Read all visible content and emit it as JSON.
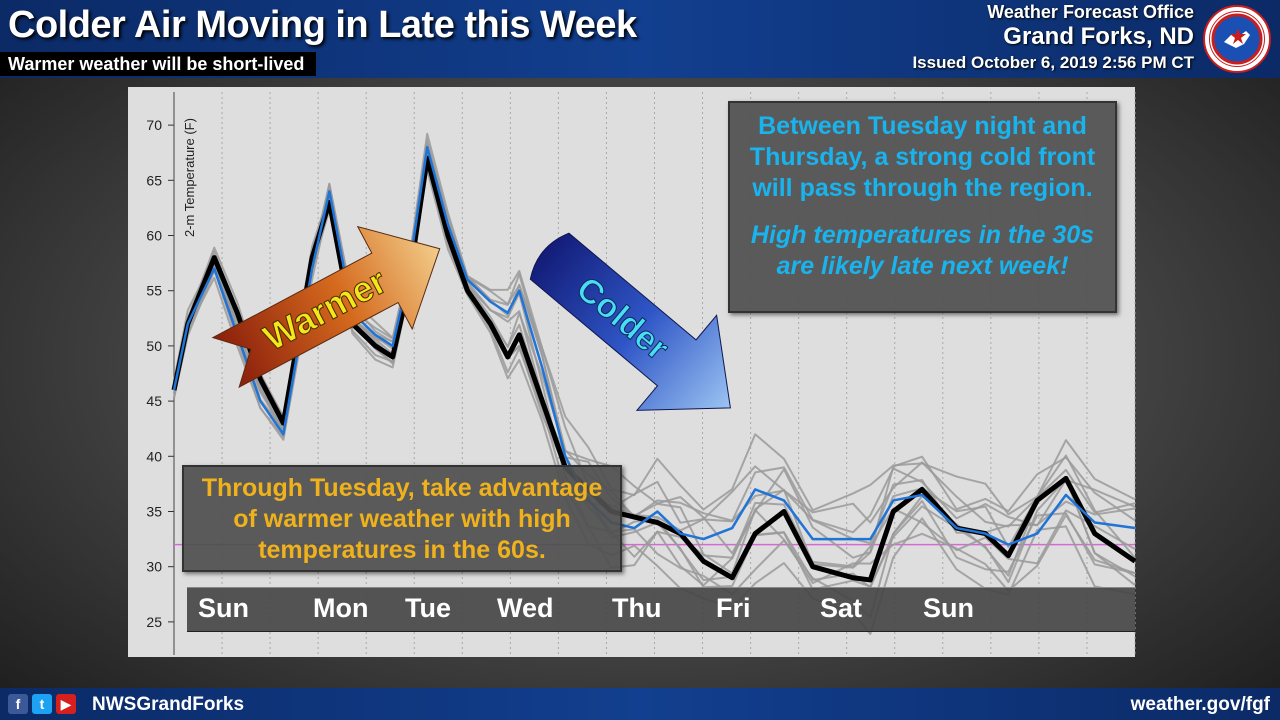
{
  "header": {
    "title": "Colder Air Moving in Late this Week",
    "subtitle": "Warmer weather will be short-lived",
    "office_line1": "Weather Forecast Office",
    "office_line2": "Grand Forks, ND",
    "issued": "Issued October 6, 2019 2:56 PM CT",
    "seal_icon": "nws-seal-icon"
  },
  "footer": {
    "handle": "NWSGrandForks",
    "website": "weather.gov/fgf",
    "social_icons": [
      "facebook-icon",
      "twitter-icon",
      "youtube-icon"
    ]
  },
  "callouts": {
    "right_line1": "Between Tuesday night and",
    "right_line2": "Thursday, a strong cold front",
    "right_line3": "will pass through the region.",
    "right_line4": "High temperatures in the 30s",
    "right_line5": "are likely late next week!",
    "left_line1": "Through Tuesday, take advantage",
    "left_line2": "of warmer weather with high",
    "left_line3": "temperatures in the 60s."
  },
  "arrows": {
    "warmer_label": "Warmer",
    "colder_label": "Colder"
  },
  "days": [
    "Sun",
    "Mon",
    "Tue",
    "Wed",
    "Thu",
    "Fri",
    "Sat",
    "Sun"
  ],
  "chart_data": {
    "type": "line",
    "ylabel": "2-m Temperature (F)",
    "ylim": [
      22,
      73
    ],
    "y_ticks": [
      25,
      30,
      35,
      40,
      45,
      50,
      55,
      60,
      65,
      70
    ],
    "xlim": [
      0,
      8.35
    ],
    "day_positions": [
      0.4,
      1.4,
      2.2,
      3.0,
      4.0,
      4.9,
      5.8,
      6.7
    ],
    "reference_line": {
      "y": 32,
      "color": "#d56ad5"
    },
    "series": [
      {
        "role": "ensemble-mean",
        "color": "#000000",
        "x": [
          0,
          0.12,
          0.35,
          0.55,
          0.75,
          0.95,
          1.2,
          1.35,
          1.55,
          1.75,
          1.9,
          2.03,
          2.2,
          2.38,
          2.55,
          2.75,
          2.9,
          3.0,
          3.2,
          3.4,
          3.6,
          3.8,
          4.0,
          4.2,
          4.4,
          4.6,
          4.85,
          5.05,
          5.3,
          5.55,
          5.9,
          6.05,
          6.25,
          6.5,
          6.8,
          7.05,
          7.25,
          7.5,
          7.75,
          8.0,
          8.35
        ],
        "values": [
          46,
          52,
          58,
          53,
          47,
          43,
          58,
          63,
          52,
          50,
          49,
          55,
          67,
          60,
          55,
          52,
          49,
          51,
          45,
          39,
          37,
          35,
          34.5,
          34,
          33,
          30.5,
          29,
          33,
          35,
          30,
          29,
          28.8,
          35,
          37,
          33.5,
          33,
          31,
          36,
          38,
          33,
          30.5
        ]
      },
      {
        "role": "deterministic",
        "color": "#1f74d6",
        "x": [
          0,
          0.12,
          0.35,
          0.55,
          0.75,
          0.95,
          1.2,
          1.35,
          1.55,
          1.75,
          1.9,
          2.03,
          2.2,
          2.38,
          2.55,
          2.75,
          2.9,
          3.0,
          3.2,
          3.4,
          3.6,
          3.8,
          4.0,
          4.2,
          4.4,
          4.6,
          4.85,
          5.05,
          5.3,
          5.55,
          5.9,
          6.05,
          6.25,
          6.5,
          6.8,
          7.05,
          7.25,
          7.5,
          7.75,
          8.0,
          8.35
        ],
        "values": [
          46,
          52,
          57,
          51,
          45,
          42,
          57,
          64,
          53,
          51,
          50,
          56,
          68,
          61,
          56,
          54,
          53,
          55,
          48,
          40,
          36,
          34,
          33.5,
          35,
          33,
          32.5,
          33.5,
          37,
          36,
          32.5,
          32.5,
          32.5,
          36,
          36.5,
          33.5,
          33,
          32,
          33,
          36.5,
          34,
          33.5
        ]
      }
    ]
  }
}
